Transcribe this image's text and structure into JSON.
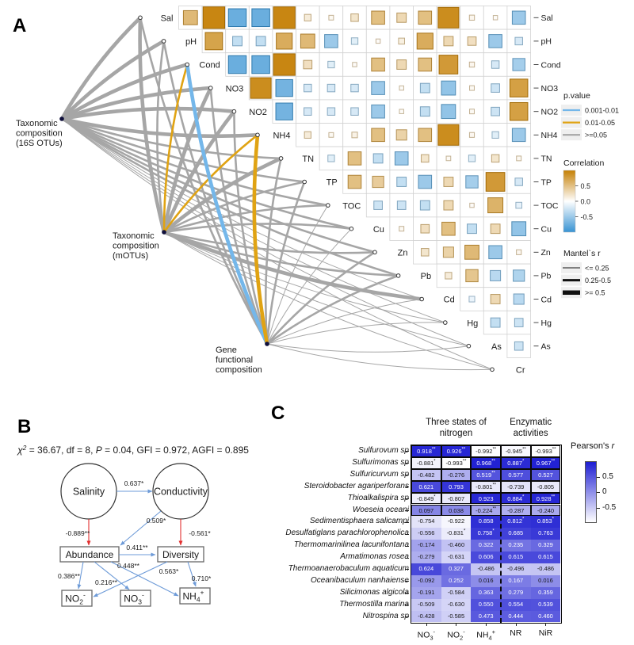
{
  "figure": {
    "panel_a_label": "A",
    "panel_b_label": "B",
    "panel_c_label": "C"
  },
  "panel_a": {
    "hubs": [
      {
        "id": "16S",
        "label_lines": [
          "Taxonomic",
          "composition",
          "(16S OTUs)"
        ]
      },
      {
        "id": "mOTUs",
        "label_lines": [
          "Taxonomic",
          "composition",
          "(mOTUs)"
        ]
      },
      {
        "id": "Gene",
        "label_lines": [
          "Gene",
          "functional",
          "composition"
        ]
      }
    ],
    "legend_pvalue": {
      "title": "p.value",
      "items": [
        {
          "label": "0.001-0.01",
          "color": "#74b7ea"
        },
        {
          "label": "0.01-0.05",
          "color": "#e0a313"
        },
        {
          "label": ">=0.05",
          "color": "#a6a6a6"
        }
      ]
    },
    "legend_correlation": {
      "title": "Correlation",
      "ticks": [
        "0.5",
        "0.0",
        "-0.5"
      ],
      "pos_color": "#c58005",
      "neg_color": "#3893d3"
    },
    "legend_mantel": {
      "title": "Mantel`s r",
      "items": [
        {
          "label": "<= 0.25",
          "width": 1
        },
        {
          "label": "0.25-0.5",
          "width": 3
        },
        {
          "label": ">= 0.5",
          "width": 5.5
        }
      ]
    }
  },
  "panel_b": {
    "fit_segments": [
      {
        "t": "χ",
        "i": true
      },
      {
        "t": "2",
        "sup": true,
        "i": true
      },
      {
        "t": " = 36.67, df = 8, "
      },
      {
        "t": "P",
        "i": true
      },
      {
        "t": " = 0.04, GFI = 0.972, AGFI = 0.895"
      }
    ],
    "latent": [
      "Salinity",
      "Conductivity"
    ],
    "observed": [
      "Abundance",
      "Diversity"
    ],
    "chem_boxes": [
      {
        "id": "NO2",
        "base": "NO",
        "sub": "2",
        "sup": "-"
      },
      {
        "id": "NO3",
        "base": "NO",
        "sub": "3",
        "sup": "-"
      },
      {
        "id": "NH4",
        "base": "NH",
        "sub": "4",
        "sup": "+"
      }
    ]
  },
  "panel_c": {
    "group_headers": [
      {
        "lines": [
          "Three states of",
          "nitrogen"
        ]
      },
      {
        "lines": [
          "Enzymatic",
          "activities"
        ]
      }
    ],
    "legend": {
      "title_main": "Pearson's ",
      "title_italic": "r",
      "ticks": [
        "0.5",
        "0",
        "-0.5"
      ],
      "high_color": "#1e1ed2",
      "low_color": "#ffffff"
    },
    "columns": [
      {
        "base": "NO",
        "sub": "3",
        "sup": "-"
      },
      {
        "base": "NO",
        "sub": "2",
        "sup": "-"
      },
      {
        "base": "NH",
        "sub": "4",
        "sup": "+"
      },
      {
        "base": "NR"
      },
      {
        "base": "NiR"
      }
    ]
  },
  "chart_data": [
    {
      "type": "heatmap",
      "name": "env-correlation-matrix-upper-triangle",
      "note": "pairwise correlations shown by square size/color; values estimated from figure",
      "variables": [
        "Sal",
        "pH",
        "Cond",
        "NO3",
        "NO2",
        "NH4",
        "TN",
        "TP",
        "TOC",
        "Cu",
        "Zn",
        "Pb",
        "Cd",
        "Hg",
        "As",
        "Cr"
      ],
      "values_upper": [
        [
          0.55,
          0.95,
          -0.75,
          -0.75,
          0.95,
          0.15,
          0.05,
          0.2,
          0.5,
          0.3,
          0.5,
          0.9,
          0.07,
          0.03,
          -0.5
        ],
        [
          0.72,
          -0.3,
          -0.3,
          0.65,
          0.55,
          -0.5,
          -0.15,
          0.03,
          0.12,
          0.65,
          0.3,
          0.25,
          -0.5,
          -0.2
        ],
        [
          -0.75,
          -0.75,
          0.95,
          0.25,
          -0.15,
          0.03,
          0.5,
          0.3,
          0.5,
          0.8,
          0.07,
          -0.2,
          -0.45
        ],
        [
          0.9,
          -0.7,
          -0.2,
          -0.2,
          -0.2,
          -0.5,
          0.03,
          -0.3,
          -0.55,
          0.05,
          -0.25,
          0.75
        ],
        [
          -0.7,
          -0.2,
          -0.2,
          -0.2,
          -0.5,
          0.03,
          -0.3,
          -0.55,
          0.05,
          -0.25,
          0.75
        ],
        [
          0.15,
          0.05,
          0.1,
          0.5,
          0.35,
          0.5,
          0.9,
          0.06,
          -0.15,
          -0.5
        ],
        [
          -0.15,
          0.5,
          -0.3,
          -0.5,
          0.2,
          0.04,
          -0.15,
          0.2,
          0.05
        ],
        [
          0.5,
          0.4,
          -0.3,
          -0.5,
          0.3,
          -0.45,
          0.8,
          -0.2
        ],
        [
          -0.25,
          -0.25,
          -0.3,
          0.3,
          0.03,
          0.6,
          -0.12
        ],
        [
          0.05,
          0.25,
          0.5,
          -0.3,
          0.3,
          -0.55
        ],
        [
          0.2,
          0.35,
          0.55,
          -0.5,
          0.06
        ],
        [
          0.15,
          0.45,
          -0.35,
          -0.4
        ],
        [
          -0.1,
          0.3,
          -0.35
        ],
        [
          -0.3,
          -0.25
        ],
        [
          -0.25
        ]
      ]
    },
    {
      "type": "table",
      "name": "mantel-network-edges",
      "columns": [
        "from",
        "to",
        "mantel_r_class",
        "p_class"
      ],
      "rows": [
        [
          "16S",
          "Sal",
          "thick",
          "ns"
        ],
        [
          "16S",
          "pH",
          "thick",
          "ns"
        ],
        [
          "16S",
          "Cond",
          "thick",
          "ns"
        ],
        [
          "16S",
          "NO3",
          "thick",
          "ns"
        ],
        [
          "16S",
          "NO2",
          "thick",
          "ns"
        ],
        [
          "16S",
          "NH4",
          "thick",
          "ns"
        ],
        [
          "16S",
          "TN",
          "mid",
          "ns"
        ],
        [
          "16S",
          "TP",
          "mid",
          "ns"
        ],
        [
          "16S",
          "TOC",
          "mid",
          "ns"
        ],
        [
          "16S",
          "Cu",
          "mid",
          "ns"
        ],
        [
          "16S",
          "Zn",
          "mid",
          "ns"
        ],
        [
          "16S",
          "Pb",
          "mid",
          "ns"
        ],
        [
          "16S",
          "Cd",
          "thin",
          "ns"
        ],
        [
          "16S",
          "Hg",
          "thin",
          "ns"
        ],
        [
          "16S",
          "As",
          "thin",
          "ns"
        ],
        [
          "16S",
          "Cr",
          "thin",
          "ns"
        ],
        [
          "mOTUs",
          "Sal",
          "thick",
          "ns"
        ],
        [
          "mOTUs",
          "pH",
          "mid",
          "ns"
        ],
        [
          "mOTUs",
          "Cond",
          "mid",
          "p05"
        ],
        [
          "mOTUs",
          "NO3",
          "thick",
          "ns"
        ],
        [
          "mOTUs",
          "NO2",
          "thick",
          "ns"
        ],
        [
          "mOTUs",
          "NH4",
          "mid",
          "p05"
        ],
        [
          "mOTUs",
          "TN",
          "thick",
          "ns"
        ],
        [
          "mOTUs",
          "TP",
          "mid",
          "ns"
        ],
        [
          "mOTUs",
          "TOC",
          "mid",
          "ns"
        ],
        [
          "mOTUs",
          "Cu",
          "mid",
          "ns"
        ],
        [
          "mOTUs",
          "Zn",
          "mid",
          "ns"
        ],
        [
          "mOTUs",
          "Pb",
          "mid",
          "ns"
        ],
        [
          "mOTUs",
          "Cd",
          "thick",
          "ns"
        ],
        [
          "mOTUs",
          "Hg",
          "thin",
          "ns"
        ],
        [
          "mOTUs",
          "As",
          "thin",
          "ns"
        ],
        [
          "mOTUs",
          "Cr",
          "thin",
          "ns"
        ],
        [
          "Gene",
          "Sal",
          "mid",
          "ns"
        ],
        [
          "Gene",
          "pH",
          "mid",
          "ns"
        ],
        [
          "Gene",
          "Cond",
          "thick",
          "p01"
        ],
        [
          "Gene",
          "NO3",
          "mid",
          "ns"
        ],
        [
          "Gene",
          "NO2",
          "mid",
          "ns"
        ],
        [
          "Gene",
          "NH4",
          "thick",
          "p05"
        ],
        [
          "Gene",
          "TN",
          "mid",
          "ns"
        ],
        [
          "Gene",
          "TP",
          "mid",
          "ns"
        ],
        [
          "Gene",
          "TOC",
          "thin",
          "ns"
        ],
        [
          "Gene",
          "Cu",
          "thin",
          "ns"
        ],
        [
          "Gene",
          "Zn",
          "mid",
          "ns"
        ],
        [
          "Gene",
          "Pb",
          "mid",
          "ns"
        ],
        [
          "Gene",
          "Cd",
          "thin",
          "ns"
        ],
        [
          "Gene",
          "Hg",
          "thin",
          "ns"
        ],
        [
          "Gene",
          "As",
          "thin",
          "ns"
        ],
        [
          "Gene",
          "Cr",
          "thin",
          "ns"
        ]
      ]
    },
    {
      "type": "table",
      "name": "sem-paths",
      "columns": [
        "from",
        "to",
        "coefficient",
        "sign_color"
      ],
      "rows": [
        [
          "Salinity",
          "Conductivity",
          "0.637*",
          "blue"
        ],
        [
          "Salinity",
          "Abundance",
          "-0.889**",
          "red"
        ],
        [
          "Conductivity",
          "Abundance",
          "0.509*",
          "blue"
        ],
        [
          "Conductivity",
          "Diversity",
          "-0.561*",
          "red"
        ],
        [
          "Abundance",
          "Diversity",
          "0.411**",
          "blue"
        ],
        [
          "Abundance",
          "NO2",
          "0.386**",
          "blue"
        ],
        [
          "Abundance",
          "NO3",
          "0.216**",
          "blue"
        ],
        [
          "Abundance",
          "NH4",
          "0.448**",
          "blue"
        ],
        [
          "Diversity",
          "NO2",
          "0.563*",
          "blue"
        ],
        [
          "Diversity",
          "NH4",
          "0.710*",
          "blue"
        ]
      ]
    },
    {
      "type": "heatmap",
      "name": "pearson-r-taxa-vs-nitrogen",
      "rows": [
        "Sulfurovum sp",
        "Sulfurimonas sp",
        "Sulfuricurvum sp",
        "Steroidobacter agariperforans",
        "Thioalkalispira sp",
        "Woeseia oceani",
        "Sedimentisphaera salicampi",
        "Desulfatiglans parachlorophenolica",
        "Thermomarinilinea lacunifontana",
        "Armatimonas rosea",
        "Thermoanaerobaculum aquaticum",
        "Oceanibaculum nanhaiense",
        "Silicimonas algicola",
        "Thermostilla marina",
        "Nitrospina sp"
      ],
      "columns": [
        "NO3-",
        "NO2-",
        "NH4+",
        "NR",
        "NiR"
      ],
      "values": [
        [
          "0.918",
          "0.926",
          "-0.992",
          "-0.945",
          "-0.993"
        ],
        [
          "-0.881",
          "-0.993",
          "0.968",
          "0.887",
          "0.967"
        ],
        [
          "-0.482",
          "-0.276",
          "0.519",
          "0.577",
          "0.527"
        ],
        [
          "0.621",
          "0.793",
          "-0.801",
          "-0.739",
          "-0.805"
        ],
        [
          "-0.849",
          "-0.807",
          "0.923",
          "0.884",
          "0.928"
        ],
        [
          "0.097",
          "0.038",
          "-0.224",
          "-0.287",
          "-0.240"
        ],
        [
          "-0.754",
          "-0.922",
          "0.858",
          "0.812",
          "0.853"
        ],
        [
          "-0.556",
          "-0.831",
          "0.758",
          "0.685",
          "0.763"
        ],
        [
          "-0.174",
          "-0.460",
          "0.322",
          "0.235",
          "0.329"
        ],
        [
          "-0.279",
          "-0.631",
          "0.606",
          "0.615",
          "0.615"
        ],
        [
          "0.624",
          "0.327",
          "-0.486",
          "-0.496",
          "-0.486"
        ],
        [
          "-0.092",
          "0.252",
          "0.016",
          "0.167",
          "0.016"
        ],
        [
          "-0.191",
          "-0.584",
          "0.363",
          "0.279",
          "0.359"
        ],
        [
          "-0.509",
          "-0.630",
          "0.550",
          "0.554",
          "0.539"
        ],
        [
          "-0.428",
          "-0.585",
          "0.473",
          "0.444",
          "0.460"
        ]
      ],
      "sig": [
        [
          "**",
          "**",
          "**",
          "**",
          "**"
        ],
        [
          "*",
          "**",
          "**",
          "*",
          "**"
        ],
        [
          "",
          "",
          "**",
          "",
          ""
        ],
        [
          "",
          "",
          "**",
          "",
          ""
        ],
        [
          "*",
          "",
          "",
          "*",
          "**"
        ],
        [
          "",
          "",
          "**",
          "",
          ""
        ],
        [
          "",
          "",
          "",
          "*",
          "*"
        ],
        [
          "",
          "*",
          "*",
          "",
          ""
        ],
        [
          "",
          "",
          "",
          "",
          ""
        ],
        [
          "",
          "",
          "",
          "",
          ""
        ],
        [
          "",
          "",
          "",
          "",
          ""
        ],
        [
          "",
          "",
          "",
          "",
          ""
        ],
        [
          "",
          "",
          "",
          "",
          ""
        ],
        [
          "",
          "",
          "",
          "",
          ""
        ],
        [
          "",
          "",
          "",
          "",
          ""
        ]
      ],
      "bordered_rows": 6
    }
  ]
}
